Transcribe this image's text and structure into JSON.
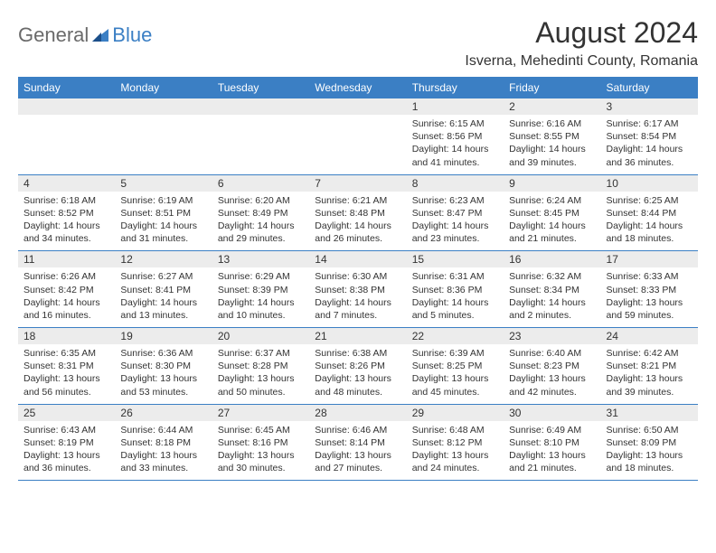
{
  "logo": {
    "part1": "General",
    "part2": "Blue"
  },
  "title": "August 2024",
  "location": "Isverna, Mehedinti County, Romania",
  "colors": {
    "header_bg": "#3b7fc4",
    "header_text": "#ffffff",
    "daynum_bg": "#ececec",
    "text": "#333333",
    "background": "#ffffff"
  },
  "day_headers": [
    "Sunday",
    "Monday",
    "Tuesday",
    "Wednesday",
    "Thursday",
    "Friday",
    "Saturday"
  ],
  "weeks": [
    [
      null,
      null,
      null,
      null,
      {
        "n": "1",
        "sr": "Sunrise: 6:15 AM",
        "ss": "Sunset: 8:56 PM",
        "dl": "Daylight: 14 hours and 41 minutes."
      },
      {
        "n": "2",
        "sr": "Sunrise: 6:16 AM",
        "ss": "Sunset: 8:55 PM",
        "dl": "Daylight: 14 hours and 39 minutes."
      },
      {
        "n": "3",
        "sr": "Sunrise: 6:17 AM",
        "ss": "Sunset: 8:54 PM",
        "dl": "Daylight: 14 hours and 36 minutes."
      }
    ],
    [
      {
        "n": "4",
        "sr": "Sunrise: 6:18 AM",
        "ss": "Sunset: 8:52 PM",
        "dl": "Daylight: 14 hours and 34 minutes."
      },
      {
        "n": "5",
        "sr": "Sunrise: 6:19 AM",
        "ss": "Sunset: 8:51 PM",
        "dl": "Daylight: 14 hours and 31 minutes."
      },
      {
        "n": "6",
        "sr": "Sunrise: 6:20 AM",
        "ss": "Sunset: 8:49 PM",
        "dl": "Daylight: 14 hours and 29 minutes."
      },
      {
        "n": "7",
        "sr": "Sunrise: 6:21 AM",
        "ss": "Sunset: 8:48 PM",
        "dl": "Daylight: 14 hours and 26 minutes."
      },
      {
        "n": "8",
        "sr": "Sunrise: 6:23 AM",
        "ss": "Sunset: 8:47 PM",
        "dl": "Daylight: 14 hours and 23 minutes."
      },
      {
        "n": "9",
        "sr": "Sunrise: 6:24 AM",
        "ss": "Sunset: 8:45 PM",
        "dl": "Daylight: 14 hours and 21 minutes."
      },
      {
        "n": "10",
        "sr": "Sunrise: 6:25 AM",
        "ss": "Sunset: 8:44 PM",
        "dl": "Daylight: 14 hours and 18 minutes."
      }
    ],
    [
      {
        "n": "11",
        "sr": "Sunrise: 6:26 AM",
        "ss": "Sunset: 8:42 PM",
        "dl": "Daylight: 14 hours and 16 minutes."
      },
      {
        "n": "12",
        "sr": "Sunrise: 6:27 AM",
        "ss": "Sunset: 8:41 PM",
        "dl": "Daylight: 14 hours and 13 minutes."
      },
      {
        "n": "13",
        "sr": "Sunrise: 6:29 AM",
        "ss": "Sunset: 8:39 PM",
        "dl": "Daylight: 14 hours and 10 minutes."
      },
      {
        "n": "14",
        "sr": "Sunrise: 6:30 AM",
        "ss": "Sunset: 8:38 PM",
        "dl": "Daylight: 14 hours and 7 minutes."
      },
      {
        "n": "15",
        "sr": "Sunrise: 6:31 AM",
        "ss": "Sunset: 8:36 PM",
        "dl": "Daylight: 14 hours and 5 minutes."
      },
      {
        "n": "16",
        "sr": "Sunrise: 6:32 AM",
        "ss": "Sunset: 8:34 PM",
        "dl": "Daylight: 14 hours and 2 minutes."
      },
      {
        "n": "17",
        "sr": "Sunrise: 6:33 AM",
        "ss": "Sunset: 8:33 PM",
        "dl": "Daylight: 13 hours and 59 minutes."
      }
    ],
    [
      {
        "n": "18",
        "sr": "Sunrise: 6:35 AM",
        "ss": "Sunset: 8:31 PM",
        "dl": "Daylight: 13 hours and 56 minutes."
      },
      {
        "n": "19",
        "sr": "Sunrise: 6:36 AM",
        "ss": "Sunset: 8:30 PM",
        "dl": "Daylight: 13 hours and 53 minutes."
      },
      {
        "n": "20",
        "sr": "Sunrise: 6:37 AM",
        "ss": "Sunset: 8:28 PM",
        "dl": "Daylight: 13 hours and 50 minutes."
      },
      {
        "n": "21",
        "sr": "Sunrise: 6:38 AM",
        "ss": "Sunset: 8:26 PM",
        "dl": "Daylight: 13 hours and 48 minutes."
      },
      {
        "n": "22",
        "sr": "Sunrise: 6:39 AM",
        "ss": "Sunset: 8:25 PM",
        "dl": "Daylight: 13 hours and 45 minutes."
      },
      {
        "n": "23",
        "sr": "Sunrise: 6:40 AM",
        "ss": "Sunset: 8:23 PM",
        "dl": "Daylight: 13 hours and 42 minutes."
      },
      {
        "n": "24",
        "sr": "Sunrise: 6:42 AM",
        "ss": "Sunset: 8:21 PM",
        "dl": "Daylight: 13 hours and 39 minutes."
      }
    ],
    [
      {
        "n": "25",
        "sr": "Sunrise: 6:43 AM",
        "ss": "Sunset: 8:19 PM",
        "dl": "Daylight: 13 hours and 36 minutes."
      },
      {
        "n": "26",
        "sr": "Sunrise: 6:44 AM",
        "ss": "Sunset: 8:18 PM",
        "dl": "Daylight: 13 hours and 33 minutes."
      },
      {
        "n": "27",
        "sr": "Sunrise: 6:45 AM",
        "ss": "Sunset: 8:16 PM",
        "dl": "Daylight: 13 hours and 30 minutes."
      },
      {
        "n": "28",
        "sr": "Sunrise: 6:46 AM",
        "ss": "Sunset: 8:14 PM",
        "dl": "Daylight: 13 hours and 27 minutes."
      },
      {
        "n": "29",
        "sr": "Sunrise: 6:48 AM",
        "ss": "Sunset: 8:12 PM",
        "dl": "Daylight: 13 hours and 24 minutes."
      },
      {
        "n": "30",
        "sr": "Sunrise: 6:49 AM",
        "ss": "Sunset: 8:10 PM",
        "dl": "Daylight: 13 hours and 21 minutes."
      },
      {
        "n": "31",
        "sr": "Sunrise: 6:50 AM",
        "ss": "Sunset: 8:09 PM",
        "dl": "Daylight: 13 hours and 18 minutes."
      }
    ]
  ]
}
